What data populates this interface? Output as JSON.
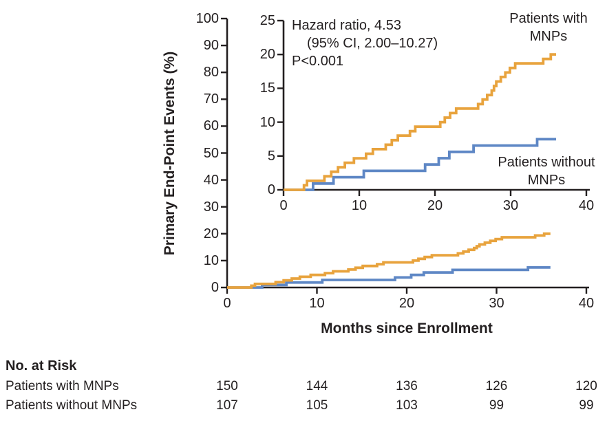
{
  "chart_data": {
    "type": "line",
    "variant": "kaplan-meier-cumulative-incidence-step",
    "title": "",
    "xlabel": "Months since Enrollment",
    "ylabel": "Primary End-Point Events (%)",
    "xlim": [
      0,
      40
    ],
    "x_ticks": [
      0,
      10,
      20,
      30,
      40
    ],
    "main_panel": {
      "ylim": [
        0,
        100
      ],
      "y_ticks": [
        0,
        10,
        20,
        30,
        40,
        50,
        60,
        70,
        80,
        90,
        100
      ]
    },
    "inset_panel": {
      "ylim": [
        0,
        25
      ],
      "y_ticks": [
        0,
        5,
        10,
        15,
        20,
        25
      ]
    },
    "grid": false,
    "legend_position": "labels-on-chart",
    "axis_color": "#231F20",
    "annotation": {
      "line1": "Hazard ratio, 4.53",
      "line2": "(95% CI, 2.00–10.27)",
      "line3": "P<0.001"
    },
    "series": [
      {
        "name": "Patients with MNPs",
        "label_lines": [
          "Patients with",
          "MNPs"
        ],
        "color": "#E8A33D",
        "step_pct": 0.667,
        "event_months": [
          2.7,
          3.1,
          5.4,
          6.3,
          7.2,
          8.1,
          9.3,
          10.9,
          11.8,
          13.5,
          14.3,
          15.1,
          16.7,
          17.4,
          20.7,
          21.3,
          22.0,
          22.8,
          25.7,
          26.3,
          26.9,
          27.5,
          27.8,
          28.1,
          28.7,
          29.3,
          29.9,
          30.6,
          34.3,
          35.3
        ],
        "end_month": 36,
        "final_pct": 20.0
      },
      {
        "name": "Patients without MNPs",
        "label_lines": [
          "Patients without",
          "MNPs"
        ],
        "color": "#5E87C5",
        "step_pct": 0.935,
        "event_months": [
          3.9,
          6.6,
          10.6,
          18.7,
          20.5,
          21.9,
          25.1,
          33.5
        ],
        "end_month": 36,
        "final_pct": 7.5
      }
    ]
  },
  "at_risk": {
    "title": "No. at Risk",
    "timepoints": [
      0,
      10,
      20,
      30,
      40
    ],
    "rows": [
      {
        "label": "Patients with MNPs",
        "values": [
          150,
          144,
          136,
          126,
          120
        ]
      },
      {
        "label": "Patients without MNPs",
        "values": [
          107,
          105,
          103,
          99,
          99
        ]
      }
    ]
  }
}
